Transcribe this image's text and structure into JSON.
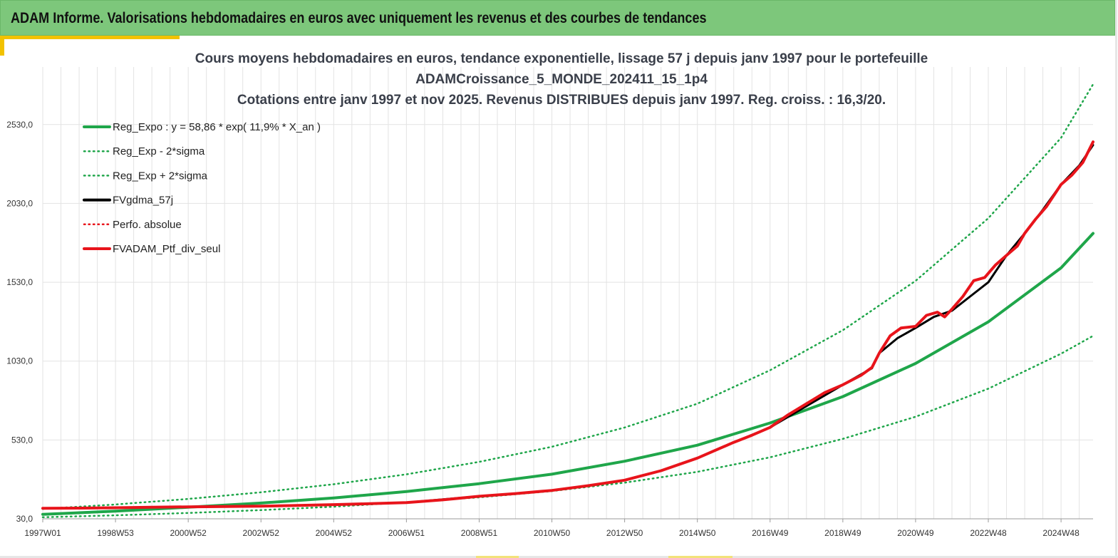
{
  "header": {
    "title": "ADAM Informe. Valorisations hebdomadaires en euros avec uniquement les revenus et des courbes de tendances"
  },
  "chart_data": {
    "type": "line",
    "title_lines": [
      "Cours moyens hebdomadaires  en euros, tendance exponentielle, lissage 57 j depuis janv 1997 pour le portefeuille",
      "ADAMCroissance_5_MONDE_202411_15_1p4",
      "Cotations  entre janv 1997 et nov 2025. Revenus DISTRIBUES depuis janv 1997. Reg. croiss. : 16,3/20."
    ],
    "xlabel": "",
    "ylabel": "",
    "x_tick_labels": [
      "1997W01",
      "1998W53",
      "2000W52",
      "2002W52",
      "2004W52",
      "2006W51",
      "2008W51",
      "2010W50",
      "2012W50",
      "2014W50",
      "2016W49",
      "2018W49",
      "2020W49",
      "2022W48",
      "2024W48"
    ],
    "x_tick_years": [
      1997.0,
      1999.0,
      2001.0,
      2003.0,
      2005.0,
      2007.0,
      2009.0,
      2011.0,
      2013.0,
      2015.0,
      2017.0,
      2019.0,
      2021.0,
      2023.0,
      2025.0
    ],
    "x_range": [
      1997.0,
      2025.88
    ],
    "y_tick_labels": [
      "30,0",
      "530,0",
      "1030,0",
      "1530,0",
      "2030,0",
      "2530,0"
    ],
    "y_ticks": [
      30,
      530,
      1030,
      1530,
      2030,
      2530
    ],
    "ylim": [
      30,
      2895
    ],
    "grid": "vertical",
    "legend_position": "top-left",
    "legend": [
      {
        "label": "Reg_Expo : y = 58,86 * exp( 11,9% *  X_an )",
        "color": "#1fa64a",
        "style": "solid"
      },
      {
        "label": "Reg_Exp - 2*sigma",
        "color": "#1fa64a",
        "style": "dotted"
      },
      {
        "label": "Reg_Exp + 2*sigma",
        "color": "#1fa64a",
        "style": "dotted"
      },
      {
        "label": "FVgdma_57j",
        "color": "#000000",
        "style": "solid"
      },
      {
        "label": "Perfo. absolue",
        "color": "#e8141b",
        "style": "dotted"
      },
      {
        "label": "FVADAM_Ptf_div_seul",
        "color": "#e8141b",
        "style": "solid"
      }
    ],
    "series": [
      {
        "name": "Reg_Expo : y = 58,86 * exp( 11,9% *  X_an )",
        "color": "#1fa64a",
        "style": "solid",
        "width": 4,
        "x": [
          1997,
          1999,
          2001,
          2003,
          2005,
          2007,
          2009,
          2011,
          2013,
          2015,
          2017,
          2019,
          2021,
          2023,
          2025,
          2025.88
        ],
        "values": [
          58,
          79,
          103,
          130,
          162,
          203,
          253,
          313,
          395,
          497,
          638,
          805,
          1015,
          1279,
          1621,
          1840
        ]
      },
      {
        "name": "Reg_Exp - 2*sigma",
        "color": "#1fa64a",
        "style": "dotted",
        "width": 2.5,
        "x": [
          1997,
          1999,
          2001,
          2003,
          2005,
          2007,
          2009,
          2011,
          2013,
          2015,
          2017,
          2019,
          2021,
          2023,
          2025,
          2025.88
        ],
        "values": [
          40,
          52,
          67,
          85,
          107,
          135,
          166,
          206,
          259,
          328,
          420,
          537,
          677,
          855,
          1077,
          1190
        ]
      },
      {
        "name": "Reg_Exp + 2*sigma",
        "color": "#1fa64a",
        "style": "dotted",
        "width": 2.5,
        "x": [
          1997,
          1999,
          2001,
          2003,
          2005,
          2007,
          2009,
          2011,
          2013,
          2015,
          2017,
          2019,
          2021,
          2023,
          2025,
          2025.88
        ],
        "values": [
          93,
          121,
          156,
          198,
          249,
          312,
          391,
          487,
          609,
          760,
          972,
          1226,
          1539,
          1936,
          2446,
          2785
        ]
      },
      {
        "name": "FVgdma_57j",
        "color": "#000000",
        "style": "solid",
        "width": 3,
        "x": [
          1997,
          1999,
          2001,
          2003,
          2005,
          2007,
          2009,
          2010,
          2011,
          2012,
          2013,
          2014,
          2015,
          2016,
          2017,
          2018,
          2019,
          2019.8,
          2020,
          2020.5,
          2021,
          2021.5,
          2022,
          2022.5,
          2023,
          2023.5,
          2024,
          2024.5,
          2025,
          2025.5,
          2025.88
        ],
        "values": [
          97,
          100,
          106,
          110,
          120,
          133,
          173,
          190,
          210,
          240,
          275,
          335,
          415,
          515,
          610,
          745,
          880,
          985,
          1080,
          1175,
          1240,
          1310,
          1350,
          1440,
          1530,
          1700,
          1840,
          1990,
          2150,
          2270,
          2400
        ]
      },
      {
        "name": "FVADAM_Ptf_div_seul",
        "color": "#e8141b",
        "style": "solid",
        "width": 4,
        "x": [
          1997,
          1998,
          1999,
          2000,
          2001,
          2002,
          2003,
          2004,
          2005,
          2006,
          2007,
          2008,
          2009,
          2010,
          2011,
          2012,
          2013,
          2014,
          2015,
          2016,
          2016.5,
          2017,
          2017.5,
          2018,
          2018.5,
          2019,
          2019.5,
          2019.8,
          2020,
          2020.3,
          2020.6,
          2021,
          2021.3,
          2021.6,
          2021.8,
          2022,
          2022.3,
          2022.6,
          2022.9,
          2023.2,
          2023.5,
          2023.8,
          2024,
          2024.3,
          2024.6,
          2025,
          2025.3,
          2025.6,
          2025.88
        ],
        "values": [
          97,
          98,
          100,
          103,
          106,
          108,
          110,
          115,
          120,
          126,
          133,
          150,
          173,
          190,
          210,
          240,
          275,
          335,
          415,
          515,
          560,
          610,
          690,
          760,
          830,
          880,
          940,
          990,
          1080,
          1190,
          1240,
          1250,
          1320,
          1340,
          1310,
          1360,
          1440,
          1540,
          1560,
          1640,
          1700,
          1760,
          1840,
          1930,
          2010,
          2150,
          2210,
          2290,
          2420
        ]
      }
    ]
  }
}
